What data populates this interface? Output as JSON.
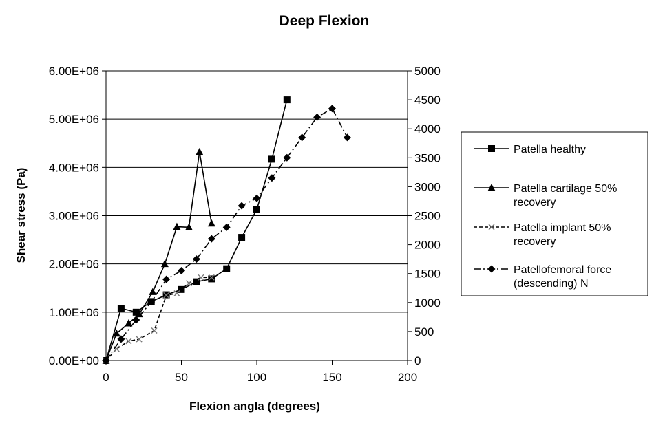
{
  "chart_data": {
    "type": "line",
    "title": "Deep Flexion",
    "xlabel": "Flexion angla (degrees)",
    "ylabel": "Shear stress (Pa)",
    "xlim": [
      0,
      200
    ],
    "ylim": [
      0,
      6000000
    ],
    "y2lim": [
      0,
      5000
    ],
    "x_ticks": [
      "0",
      "50",
      "100",
      "150",
      "200"
    ],
    "y_ticks": [
      "0.00E+00",
      "1.00E+06",
      "2.00E+06",
      "3.00E+06",
      "4.00E+06",
      "5.00E+06",
      "6.00E+06"
    ],
    "y2_ticks": [
      "0",
      "500",
      "1000",
      "1500",
      "2000",
      "2500",
      "3000",
      "3500",
      "4000",
      "4500",
      "5000"
    ],
    "grid": true,
    "legend_position": "right",
    "series": [
      {
        "name": "Patella healthy",
        "axis": "left",
        "marker": "square",
        "dash": "solid",
        "x": [
          0,
          10,
          20,
          30,
          40,
          50,
          60,
          70,
          80,
          90,
          100,
          110,
          120
        ],
        "y": [
          0,
          1080000,
          1000000,
          1220000,
          1360000,
          1470000,
          1630000,
          1690000,
          1900000,
          2550000,
          3130000,
          4170000,
          5400000
        ]
      },
      {
        "name": "Patella cartilage 50% recovery",
        "axis": "left",
        "marker": "triangle",
        "dash": "solid",
        "x": [
          0,
          7,
          15,
          22,
          31,
          39,
          47,
          55,
          62,
          70
        ],
        "y": [
          0,
          560000,
          770000,
          960000,
          1420000,
          2000000,
          2770000,
          2760000,
          4320000,
          2840000
        ]
      },
      {
        "name": "Patella implant 50% recovery",
        "axis": "left",
        "marker": "x",
        "dash": "dash",
        "x": [
          0,
          7,
          15,
          22,
          32,
          40,
          47,
          55,
          63,
          70
        ],
        "y": [
          0,
          240000,
          400000,
          440000,
          620000,
          1350000,
          1390000,
          1600000,
          1720000,
          1720000
        ]
      },
      {
        "name": "Patellofemoral force (descending) N",
        "axis": "right",
        "marker": "diamond",
        "dash": "dashdot",
        "x": [
          0,
          10,
          20,
          30,
          40,
          50,
          60,
          70,
          80,
          90,
          100,
          110,
          120,
          130,
          140,
          150,
          160
        ],
        "y": [
          0,
          370,
          700,
          1010,
          1400,
          1550,
          1750,
          2100,
          2300,
          2670,
          2800,
          3150,
          3500,
          3850,
          4200,
          4350,
          3850
        ]
      }
    ]
  }
}
